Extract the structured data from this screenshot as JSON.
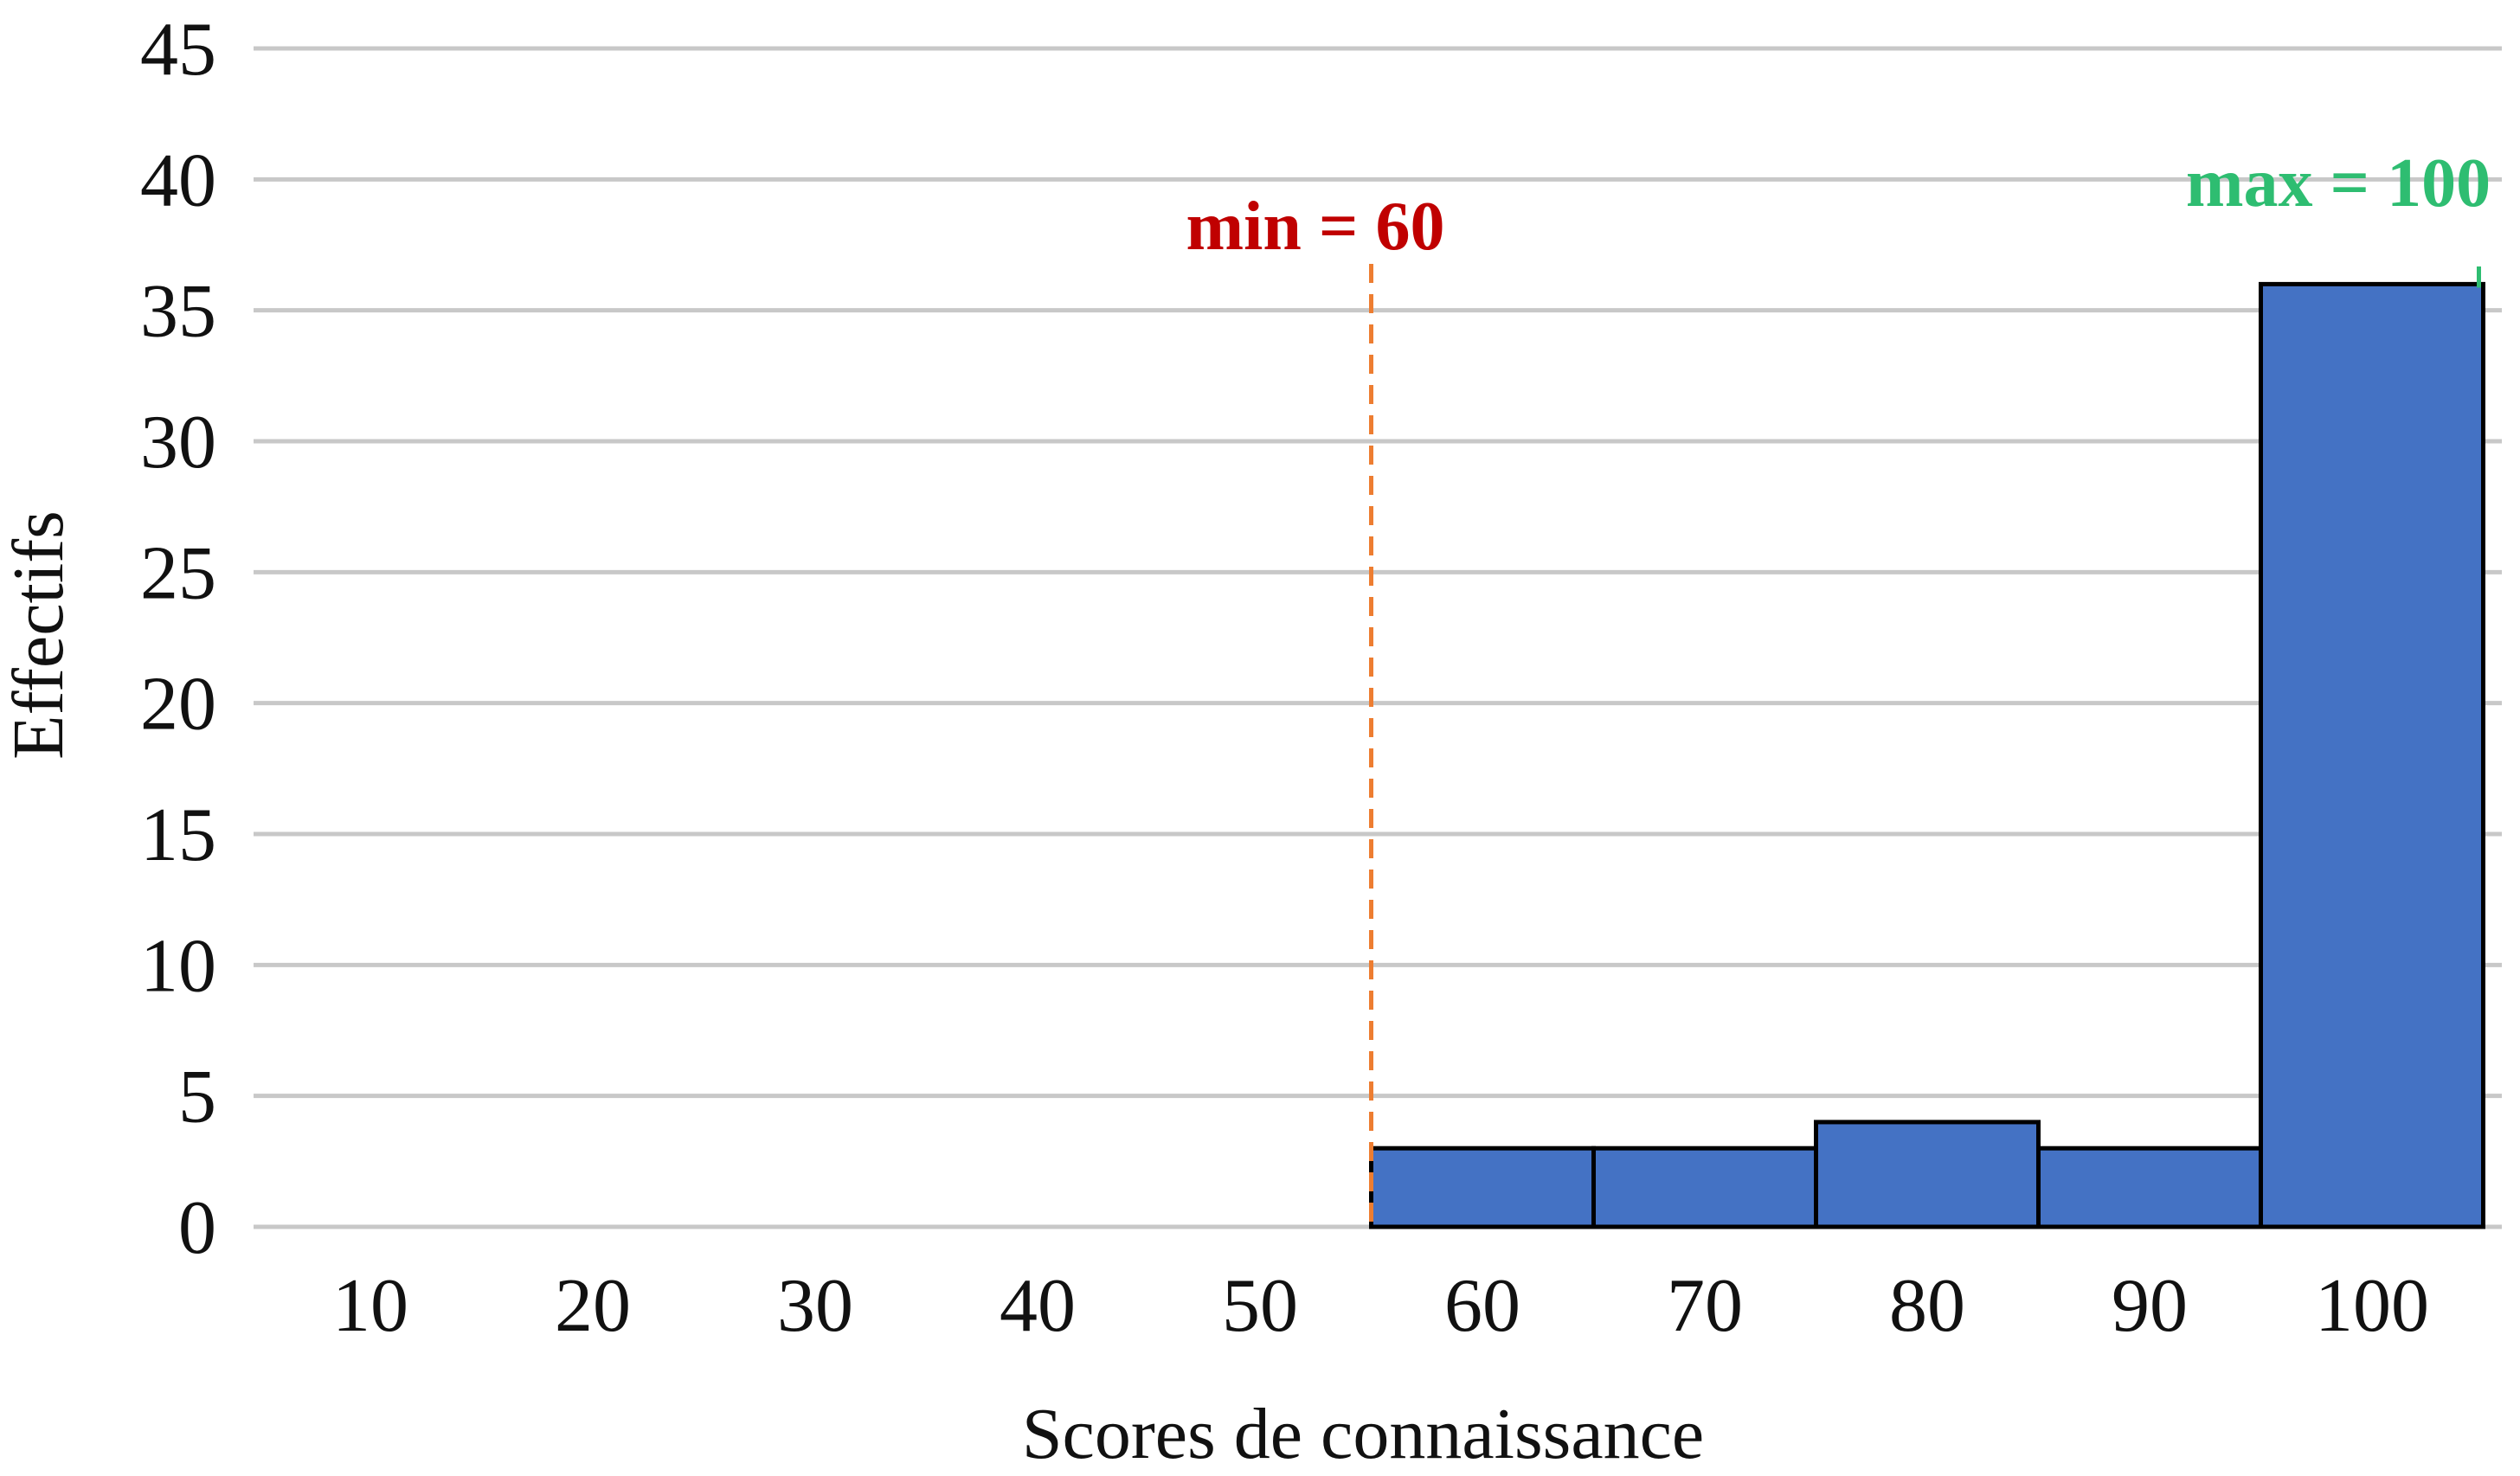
{
  "chart_data": {
    "type": "bar",
    "categories": [
      "10",
      "20",
      "30",
      "40",
      "50",
      "60",
      "70",
      "80",
      "90",
      "100"
    ],
    "values": [
      0,
      0,
      0,
      0,
      0,
      3,
      3,
      4,
      3,
      36
    ],
    "xlabel": "Scores de connaissance",
    "ylabel": "Effectifs",
    "ylim": [
      0,
      45
    ],
    "yticks": [
      0,
      5,
      10,
      15,
      20,
      25,
      30,
      35,
      40,
      45
    ],
    "grid": true,
    "bar_color": "#4472C4",
    "bar_edge_color": "#000000",
    "grid_color": "#C8C8C8",
    "annotations": [
      {
        "text": "min = 60",
        "x": 55,
        "color": "#C00000",
        "line_color": "#ED7D31",
        "line_style": "dashed"
      },
      {
        "text": "max = 100",
        "x": 105,
        "color": "#2EBD71",
        "line_color": "#2EBD71",
        "line_style": "solid"
      }
    ]
  }
}
